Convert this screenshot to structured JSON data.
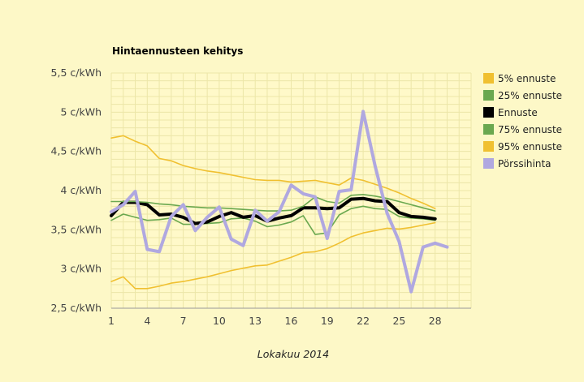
{
  "chart_data": {
    "type": "line",
    "title": "Hintaennusteen kehitys",
    "xlabel": "Lokakuu 2014",
    "ylabel": "",
    "xlim": [
      1,
      31
    ],
    "ylim": [
      2.5,
      5.5
    ],
    "x_ticks": [
      1,
      4,
      7,
      10,
      13,
      16,
      19,
      22,
      25,
      28
    ],
    "y_ticks": [
      {
        "value": 2.5,
        "label": "2,5 c/kWh"
      },
      {
        "value": 3.0,
        "label": "3 c/kWh"
      },
      {
        "value": 3.5,
        "label": "3,5 c/kWh"
      },
      {
        "value": 4.0,
        "label": "4 c/kWh"
      },
      {
        "value": 4.5,
        "label": "4,5 c/kWh"
      },
      {
        "value": 5.0,
        "label": "5 c/kWh"
      },
      {
        "value": 5.5,
        "label": "5,5 c/kWh"
      }
    ],
    "grid": true,
    "legend_position": "right",
    "x": [
      1,
      2,
      3,
      4,
      5,
      6,
      7,
      8,
      9,
      10,
      11,
      12,
      13,
      14,
      15,
      16,
      17,
      18,
      19,
      20,
      21,
      22,
      23,
      24,
      25,
      26,
      27,
      28,
      29
    ],
    "series": [
      {
        "name": "5% ennuste",
        "color": "#f0c030",
        "width": 1.6,
        "values": [
          2.84,
          2.9,
          2.75,
          2.75,
          2.78,
          2.82,
          2.84,
          2.87,
          2.9,
          2.94,
          2.98,
          3.01,
          3.04,
          3.05,
          3.1,
          3.15,
          3.21,
          3.22,
          3.26,
          3.33,
          3.41,
          3.46,
          3.49,
          3.52,
          3.51,
          3.53,
          3.56,
          3.59,
          null
        ]
      },
      {
        "name": "25% ennuste",
        "color": "#6aa84f",
        "width": 1.6,
        "values": [
          3.62,
          3.7,
          3.66,
          3.62,
          3.63,
          3.65,
          3.57,
          3.57,
          3.58,
          3.59,
          3.64,
          3.65,
          3.61,
          3.54,
          3.56,
          3.6,
          3.68,
          3.44,
          3.46,
          3.69,
          3.77,
          3.8,
          3.77,
          3.76,
          3.67,
          3.65,
          3.64,
          3.62,
          null
        ]
      },
      {
        "name": "Ennuste",
        "color": "#000000",
        "width": 4,
        "values": [
          3.68,
          3.85,
          3.85,
          3.82,
          3.69,
          3.7,
          3.66,
          3.58,
          3.6,
          3.67,
          3.72,
          3.66,
          3.68,
          3.61,
          3.65,
          3.68,
          3.78,
          3.78,
          3.77,
          3.78,
          3.89,
          3.9,
          3.87,
          3.86,
          3.72,
          3.67,
          3.66,
          3.64,
          null
        ]
      },
      {
        "name": "75% ennuste",
        "color": "#6aa84f",
        "width": 1.6,
        "values": [
          3.86,
          3.86,
          3.86,
          3.85,
          3.83,
          3.82,
          3.8,
          3.79,
          3.78,
          3.78,
          3.77,
          3.76,
          3.75,
          3.74,
          3.74,
          3.75,
          3.8,
          3.92,
          3.86,
          3.84,
          3.94,
          3.95,
          3.93,
          3.9,
          3.86,
          3.82,
          3.78,
          3.74,
          null
        ]
      },
      {
        "name": "95% ennuste",
        "color": "#f0c030",
        "width": 1.6,
        "values": [
          4.67,
          4.7,
          4.63,
          4.57,
          4.41,
          4.38,
          4.32,
          4.28,
          4.25,
          4.23,
          4.2,
          4.17,
          4.14,
          4.13,
          4.13,
          4.11,
          4.12,
          4.13,
          4.1,
          4.07,
          4.16,
          4.13,
          4.08,
          4.03,
          3.97,
          3.9,
          3.84,
          3.77,
          null
        ]
      },
      {
        "name": "Pörssihinta",
        "color": "#b0a8e0",
        "width": 4,
        "values": [
          3.73,
          3.82,
          3.99,
          3.25,
          3.22,
          3.67,
          3.82,
          3.49,
          3.66,
          3.79,
          3.38,
          3.3,
          3.75,
          3.61,
          3.73,
          4.07,
          3.96,
          3.92,
          3.39,
          3.99,
          4.01,
          5.01,
          4.31,
          3.71,
          3.35,
          2.71,
          3.28,
          3.33,
          3.28
        ]
      }
    ]
  }
}
